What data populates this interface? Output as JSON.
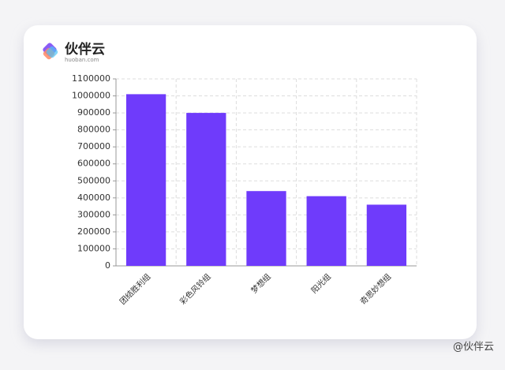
{
  "logo": {
    "name": "伙伴云",
    "domain": "huoban.com"
  },
  "watermark": "@伙伴云",
  "chart_data": {
    "type": "bar",
    "categories": [
      "团结胜利组",
      "彩色风铃组",
      "梦想组",
      "阳光组",
      "奇思妙想组"
    ],
    "values": [
      1010000,
      900000,
      440000,
      410000,
      360000
    ],
    "color": "#6f3bfb",
    "ylim": [
      0,
      1100000
    ],
    "yticks": [
      0,
      100000,
      200000,
      300000,
      400000,
      500000,
      600000,
      700000,
      800000,
      900000,
      1000000,
      1100000
    ],
    "grid": true
  }
}
